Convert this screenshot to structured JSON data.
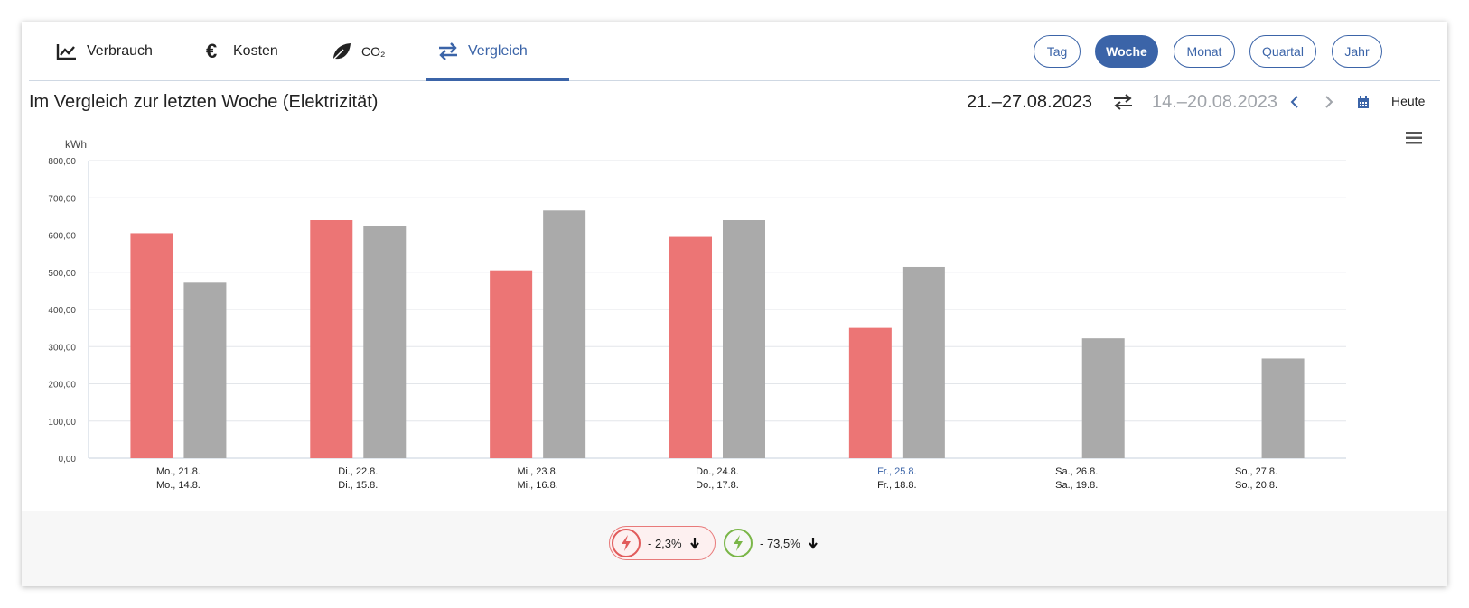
{
  "tabs": [
    {
      "label": "Verbrauch",
      "icon": "line-chart-icon"
    },
    {
      "label": "Kosten",
      "icon": "euro-icon"
    },
    {
      "label": "CO₂",
      "icon": "leaf-icon"
    },
    {
      "label": "Vergleich",
      "icon": "swap-arrows-icon",
      "active": true
    }
  ],
  "periods": [
    {
      "label": "Tag"
    },
    {
      "label": "Woche",
      "active": true
    },
    {
      "label": "Monat"
    },
    {
      "label": "Quartal"
    },
    {
      "label": "Jahr"
    }
  ],
  "header": {
    "title": "Im Vergleich zur letzten Woche (Elektrizität)",
    "current_range": "21.–27.08.2023",
    "compare_range": "14.–20.08.2023",
    "today_label": "Heute"
  },
  "colors": {
    "accent": "#3b64a8",
    "current_series": "#ec7575",
    "previous_series": "#aaaaaa",
    "decrease_red": "#e15b5b",
    "decrease_green": "#7ab648"
  },
  "chart_data": {
    "type": "bar",
    "ylabel": "kWh",
    "ylim": [
      0,
      800
    ],
    "yticks": [
      "0,00",
      "100,00",
      "200,00",
      "300,00",
      "400,00",
      "500,00",
      "600,00",
      "700,00",
      "800,00"
    ],
    "categories": [
      {
        "current": "Mo., 21.8.",
        "previous": "Mo., 14.8."
      },
      {
        "current": "Di., 22.8.",
        "previous": "Di., 15.8."
      },
      {
        "current": "Mi., 23.8.",
        "previous": "Mi., 16.8."
      },
      {
        "current": "Do., 24.8.",
        "previous": "Do., 17.8."
      },
      {
        "current": "Fr., 25.8.",
        "previous": "Fr., 18.8.",
        "highlight": true
      },
      {
        "current": "Sa., 26.8.",
        "previous": "Sa., 19.8."
      },
      {
        "current": "So., 27.8.",
        "previous": "So., 20.8."
      }
    ],
    "series": [
      {
        "values": [
          605,
          640,
          505,
          595,
          350,
          null,
          null
        ]
      },
      {
        "values": [
          472,
          624,
          666,
          640,
          514,
          322,
          268
        ]
      }
    ],
    "grid": true
  },
  "summary": [
    {
      "value": "- 2,3%",
      "trend": "down"
    },
    {
      "value": "- 73,5%",
      "trend": "down"
    }
  ]
}
